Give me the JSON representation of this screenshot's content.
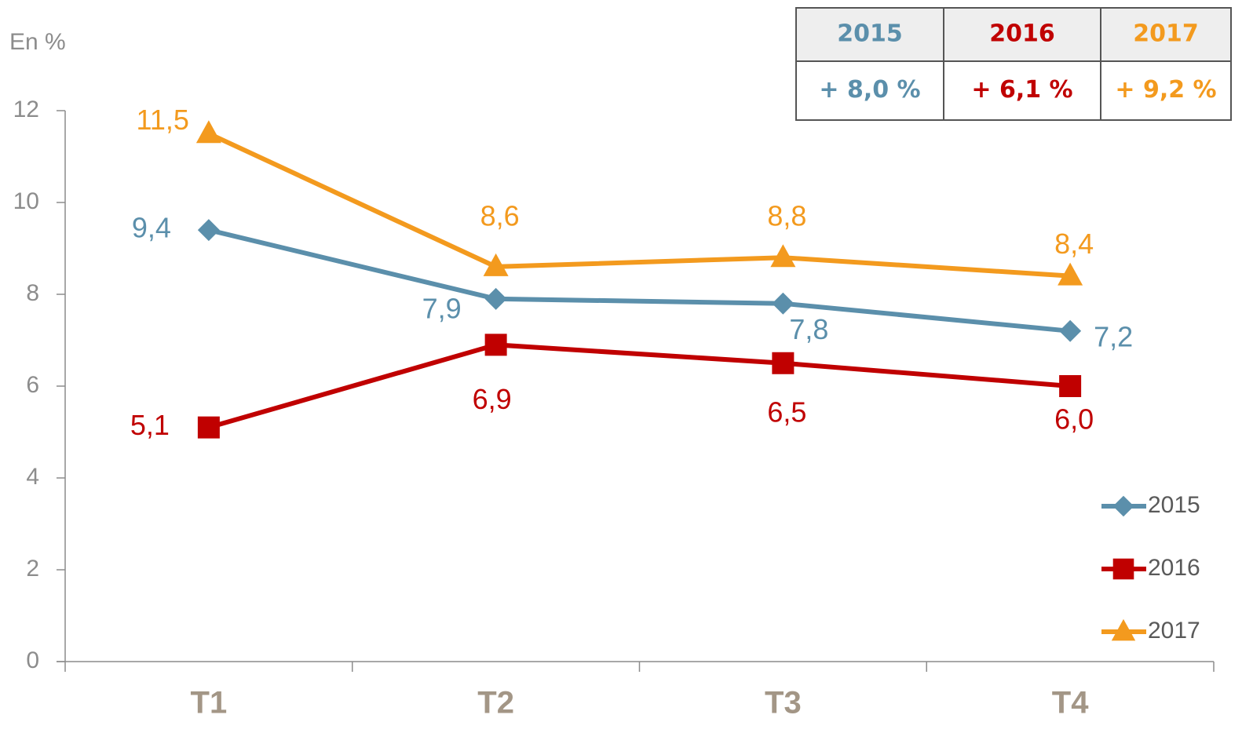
{
  "chart_data": {
    "type": "line",
    "y_label": "En %",
    "categories": [
      "T1",
      "T2",
      "T3",
      "T4"
    ],
    "series": [
      {
        "name": "2015",
        "color": "#5b8fab",
        "marker": "diamond",
        "values": [
          9.4,
          7.9,
          7.8,
          7.2
        ],
        "value_labels": [
          "9,4",
          "7,9",
          "7,8",
          "7,2"
        ]
      },
      {
        "name": "2016",
        "color": "#c00000",
        "marker": "square",
        "values": [
          5.1,
          6.9,
          6.5,
          6.0
        ],
        "value_labels": [
          "5,1",
          "6,9",
          "6,5",
          "6,0"
        ]
      },
      {
        "name": "2017",
        "color": "#f39a1e",
        "marker": "triangle",
        "values": [
          11.5,
          8.6,
          8.8,
          8.4
        ],
        "value_labels": [
          "11,5",
          "8,6",
          "8,8",
          "8,4"
        ]
      }
    ],
    "ylim": [
      0,
      12
    ],
    "yticks": [
      0,
      2,
      4,
      6,
      8,
      10,
      12
    ],
    "grid": false,
    "legend": "lower right"
  },
  "table": {
    "header": [
      "2015",
      "2016",
      "2017"
    ],
    "rows": [
      [
        "+ 8,0 %",
        "+ 6,1 %",
        "+ 9,2 %"
      ]
    ]
  }
}
